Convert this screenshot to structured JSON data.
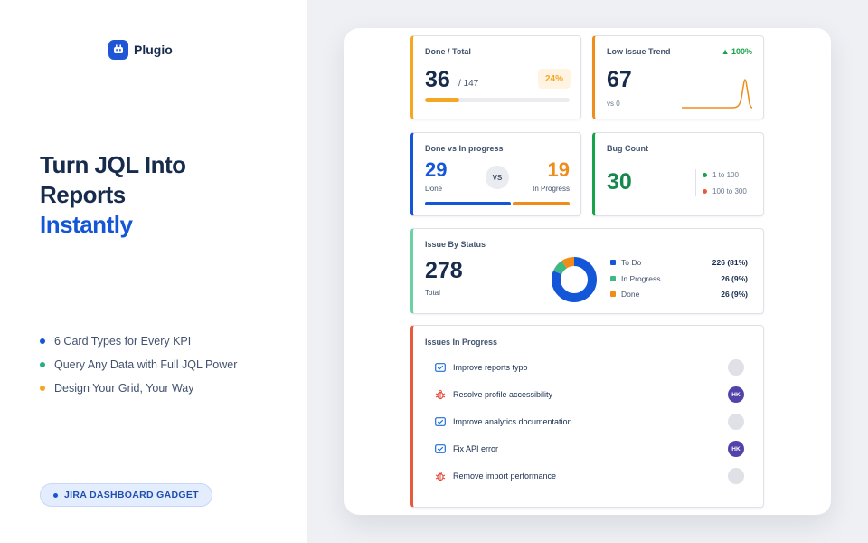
{
  "brand": {
    "name": "Plugio"
  },
  "headline": {
    "line1": "Turn JQL Into",
    "line2": "Reports",
    "accent": "Instantly"
  },
  "features": [
    {
      "label": "6 Card Types for Every KPI",
      "color": "#1456d8"
    },
    {
      "label": "Query Any Data with Full JQL Power",
      "color": "#22b07d"
    },
    {
      "label": "Design Your Grid, Your Way",
      "color": "#f5a623"
    }
  ],
  "badge": {
    "label": "JIRA DASHBOARD GADGET"
  },
  "cards": {
    "done_total": {
      "title": "Done / Total",
      "done": "36",
      "total": "/ 147",
      "percent_label": "24%",
      "progress": 0.24,
      "color": "#f5a623"
    },
    "low_trend": {
      "title": "Low Issue Trend",
      "trend": "▲ 100%",
      "value": "67",
      "caption": "vs 0",
      "color": "#f08c1a"
    },
    "done_vs_progress": {
      "title": "Done vs In progress",
      "done": "29",
      "done_label": "Done",
      "vs": "VS",
      "in_progress": "19",
      "in_progress_label": "In Progress",
      "done_color": "#1456d8",
      "progress_color": "#f08c1a"
    },
    "bug_count": {
      "title": "Bug Count",
      "value": "30",
      "legend": [
        {
          "label": "1 to 100",
          "color": "#16a34a"
        },
        {
          "label": "100 to 300",
          "color": "#e85a3c"
        }
      ]
    },
    "by_status": {
      "title": "Issue By Status",
      "total": "278",
      "total_label": "Total",
      "chart_data": {
        "type": "pie",
        "categories": [
          "To Do",
          "In Progress",
          "Done"
        ],
        "values": [
          226,
          26,
          26
        ],
        "labels": [
          "226 (81%)",
          "26 (9%)",
          "26 (9%)"
        ],
        "colors": [
          "#1456d8",
          "#3fb884",
          "#f08c1a"
        ]
      }
    },
    "in_progress": {
      "title": "Issues In Progress",
      "items": [
        {
          "label": "Improve reports typo",
          "type": "task",
          "avatar": ""
        },
        {
          "label": "Resolve profile accessibility",
          "type": "bug",
          "avatar": "HK"
        },
        {
          "label": "Improve analytics documentation",
          "type": "task",
          "avatar": ""
        },
        {
          "label": "Fix API error",
          "type": "task",
          "avatar": "HK"
        },
        {
          "label": "Remove import performance",
          "type": "bug",
          "avatar": ""
        }
      ]
    }
  }
}
